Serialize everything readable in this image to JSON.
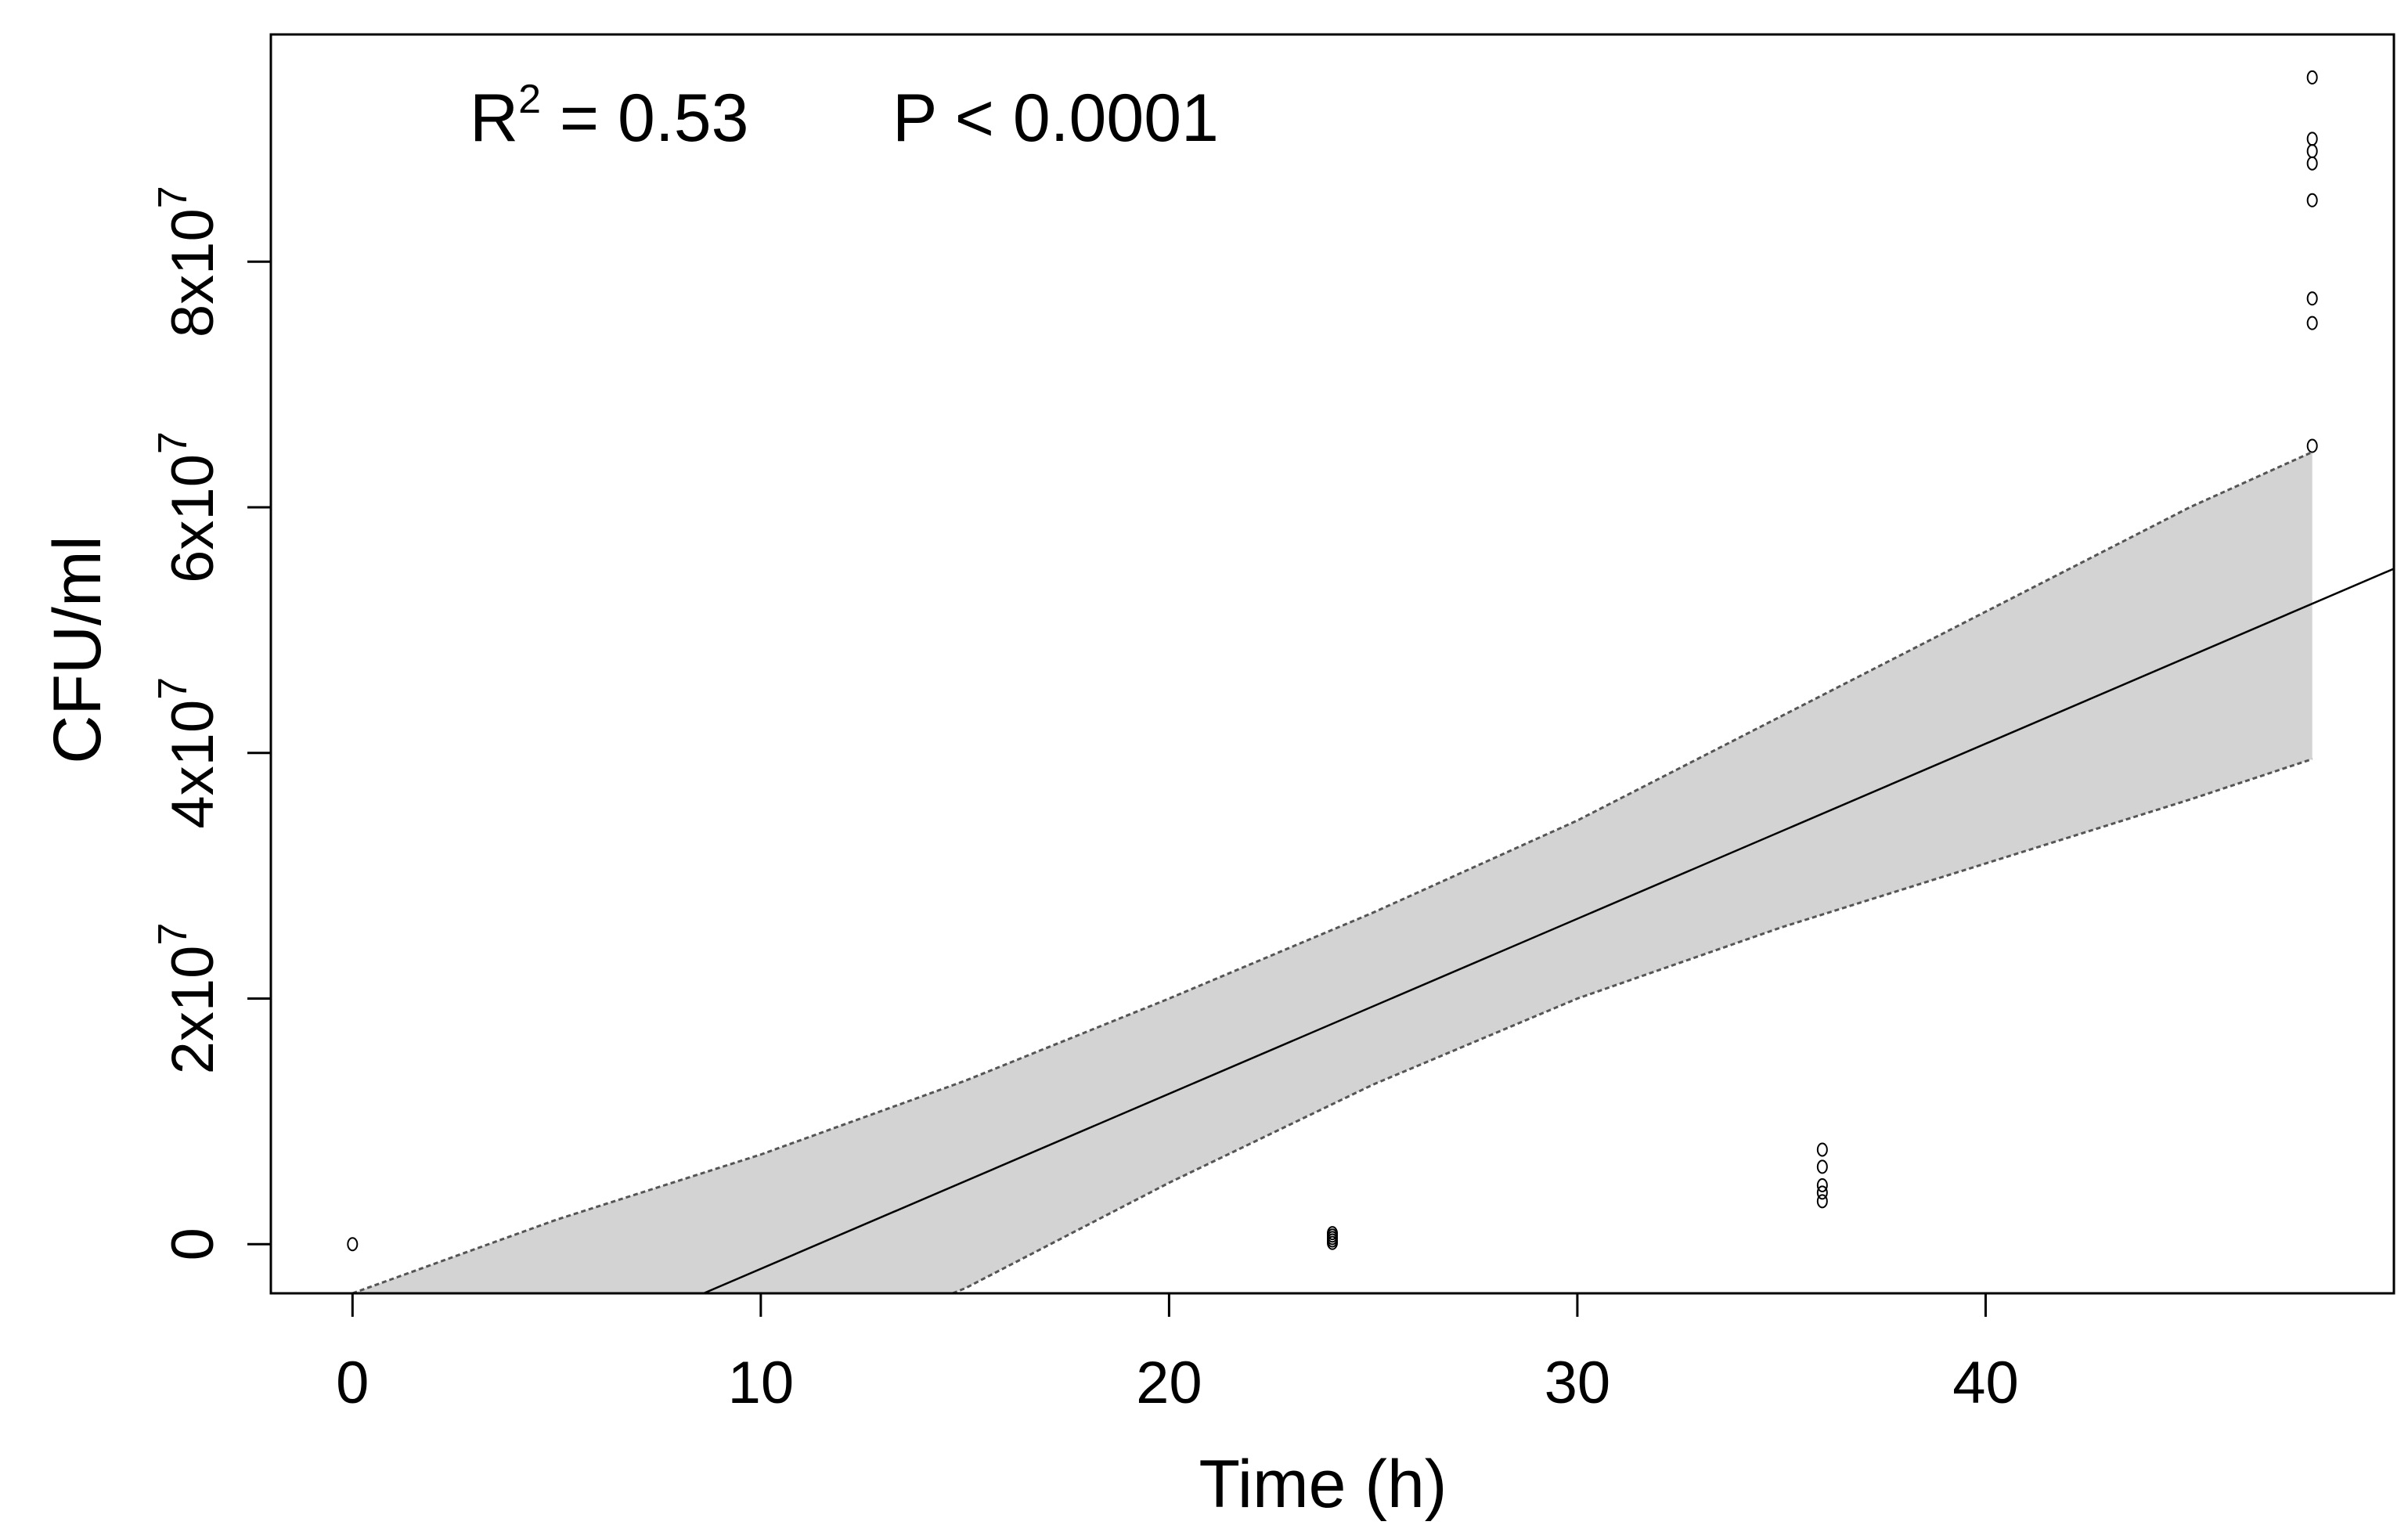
{
  "chart_data": {
    "type": "scatter",
    "title": "",
    "xlabel": "Time (h)",
    "ylabel": "CFU/ml",
    "xlim": [
      -2,
      50
    ],
    "ylim": [
      -4000000,
      98500000
    ],
    "grid": false,
    "x_ticks": [
      {
        "value": 0,
        "label": "0"
      },
      {
        "value": 10,
        "label": "10"
      },
      {
        "value": 20,
        "label": "20"
      },
      {
        "value": 30,
        "label": "30"
      },
      {
        "value": 40,
        "label": "40"
      }
    ],
    "y_ticks": [
      {
        "value": 0,
        "label": "0",
        "exp": ""
      },
      {
        "value": 20000000,
        "label": "2x10",
        "exp": "7"
      },
      {
        "value": 40000000,
        "label": "4x10",
        "exp": "7"
      },
      {
        "value": 60000000,
        "label": "6x10",
        "exp": "7"
      },
      {
        "value": 80000000,
        "label": "8x10",
        "exp": "7"
      }
    ],
    "annotation": {
      "r_label": "R",
      "r_exp": "2",
      "r_value": " = 0.53",
      "p_text": "P < 0.0001"
    },
    "points": [
      {
        "x": 0,
        "y": 0
      },
      {
        "x": 24,
        "y": 100000
      },
      {
        "x": 24,
        "y": 300000
      },
      {
        "x": 24,
        "y": 500000
      },
      {
        "x": 24,
        "y": 700000
      },
      {
        "x": 24,
        "y": 900000
      },
      {
        "x": 36,
        "y": 3500000
      },
      {
        "x": 36,
        "y": 4200000
      },
      {
        "x": 36,
        "y": 4800000
      },
      {
        "x": 36,
        "y": 6300000
      },
      {
        "x": 36,
        "y": 7700000
      },
      {
        "x": 48,
        "y": 65000000
      },
      {
        "x": 48,
        "y": 75000000
      },
      {
        "x": 48,
        "y": 77000000
      },
      {
        "x": 48,
        "y": 85000000
      },
      {
        "x": 48,
        "y": 88000000
      },
      {
        "x": 48,
        "y": 89000000
      },
      {
        "x": 48,
        "y": 90000000
      },
      {
        "x": 48,
        "y": 95000000
      }
    ],
    "fit_line": {
      "x": [
        8.6,
        50
      ],
      "y": [
        -4000000,
        55000000
      ]
    },
    "confidence_band": {
      "x": [
        0,
        5,
        10,
        15,
        20,
        25,
        30,
        35,
        40,
        45,
        48
      ],
      "upper": [
        -4000000,
        2000000,
        7300000,
        13300000,
        20000000,
        27000000,
        34500000,
        43000000,
        51500000,
        60000000,
        64500000
      ],
      "lower": [
        null,
        null,
        null,
        -3600000,
        5000000,
        13000000,
        20000000,
        25800000,
        31000000,
        36200000,
        39500000
      ]
    },
    "colors": {
      "band": "#d3d3d3",
      "band_edge": "#555555",
      "line": "#000000",
      "point": "#000000",
      "axis": "#000000"
    }
  }
}
